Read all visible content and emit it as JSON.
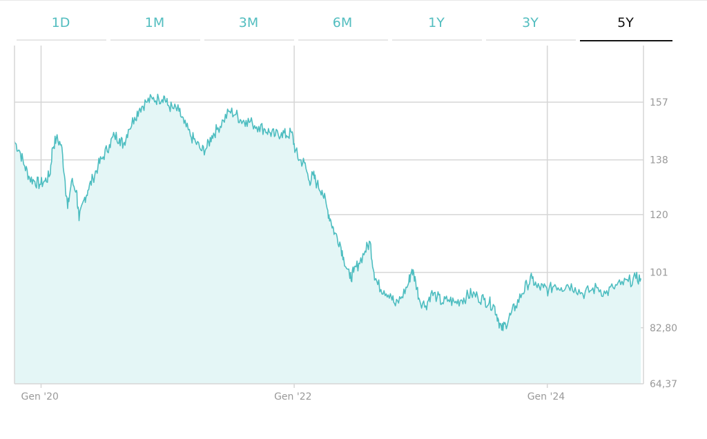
{
  "tabs": [
    {
      "label": "1D"
    },
    {
      "label": "1M"
    },
    {
      "label": "3M"
    },
    {
      "label": "6M"
    },
    {
      "label": "1Y"
    },
    {
      "label": "3Y"
    },
    {
      "label": "5Y",
      "active": true
    }
  ],
  "colors": {
    "accent": "#52bdbf",
    "line": "#4dbdc0",
    "fill": "#e4f6f6",
    "grid": "#d6d6d6",
    "axis_text": "#999999",
    "active_tab": "#111111"
  },
  "chart_data": {
    "type": "area",
    "title": "",
    "xlabel": "",
    "ylabel": "",
    "grid": true,
    "y_axis_position": "right",
    "x_ticks": [
      {
        "label": "Gen '20",
        "x": 2020.0
      },
      {
        "label": "Gen '22",
        "x": 2022.0
      },
      {
        "label": "Gen '24",
        "x": 2024.0
      }
    ],
    "y_ticks": [
      {
        "label": "157",
        "value": 157
      },
      {
        "label": "138",
        "value": 138
      },
      {
        "label": "120",
        "value": 120
      },
      {
        "label": "101",
        "value": 101
      },
      {
        "label": "82,80",
        "value": 82.8
      },
      {
        "label": "64,37",
        "value": 64.37
      }
    ],
    "xlim": [
      2019.79,
      2024.76
    ],
    "ylim": [
      64.37,
      175.6
    ],
    "series": [
      {
        "points": [
          [
            2019.79,
            144
          ],
          [
            2019.83,
            141
          ],
          [
            2019.87,
            136
          ],
          [
            2019.91,
            132
          ],
          [
            2019.95,
            131
          ],
          [
            2019.99,
            130
          ],
          [
            2020.03,
            131
          ],
          [
            2020.07,
            133
          ],
          [
            2020.09,
            142
          ],
          [
            2020.12,
            145
          ],
          [
            2020.16,
            143
          ],
          [
            2020.19,
            131
          ],
          [
            2020.21,
            122
          ],
          [
            2020.24,
            131
          ],
          [
            2020.28,
            128
          ],
          [
            2020.3,
            118
          ],
          [
            2020.34,
            125
          ],
          [
            2020.37,
            128
          ],
          [
            2020.41,
            132
          ],
          [
            2020.45,
            136
          ],
          [
            2020.49,
            139
          ],
          [
            2020.54,
            143
          ],
          [
            2020.58,
            146
          ],
          [
            2020.62,
            145
          ],
          [
            2020.65,
            143
          ],
          [
            2020.69,
            148
          ],
          [
            2020.74,
            152
          ],
          [
            2020.78,
            155
          ],
          [
            2020.83,
            157
          ],
          [
            2020.88,
            158
          ],
          [
            2020.93,
            158
          ],
          [
            2020.97,
            159
          ],
          [
            2021.0,
            156
          ],
          [
            2021.04,
            155
          ],
          [
            2021.09,
            154
          ],
          [
            2021.13,
            150
          ],
          [
            2021.18,
            146
          ],
          [
            2021.22,
            144
          ],
          [
            2021.27,
            141
          ],
          [
            2021.31,
            142
          ],
          [
            2021.35,
            146
          ],
          [
            2021.39,
            148
          ],
          [
            2021.44,
            151
          ],
          [
            2021.49,
            154
          ],
          [
            2021.54,
            153
          ],
          [
            2021.58,
            151
          ],
          [
            2021.62,
            151
          ],
          [
            2021.67,
            150
          ],
          [
            2021.72,
            149
          ],
          [
            2021.77,
            148
          ],
          [
            2021.81,
            147
          ],
          [
            2021.85,
            146
          ],
          [
            2021.9,
            147
          ],
          [
            2021.94,
            146
          ],
          [
            2021.98,
            147
          ],
          [
            2022.01,
            141
          ],
          [
            2022.04,
            138
          ],
          [
            2022.08,
            137
          ],
          [
            2022.12,
            131
          ],
          [
            2022.15,
            133
          ],
          [
            2022.18,
            130
          ],
          [
            2022.22,
            128
          ],
          [
            2022.26,
            122
          ],
          [
            2022.29,
            118
          ],
          [
            2022.32,
            114
          ],
          [
            2022.36,
            111
          ],
          [
            2022.39,
            106
          ],
          [
            2022.44,
            99
          ],
          [
            2022.47,
            101
          ],
          [
            2022.51,
            104
          ],
          [
            2022.56,
            108
          ],
          [
            2022.6,
            111
          ],
          [
            2022.63,
            101
          ],
          [
            2022.66,
            97
          ],
          [
            2022.71,
            95
          ],
          [
            2022.76,
            94
          ],
          [
            2022.8,
            90
          ],
          [
            2022.85,
            93
          ],
          [
            2022.9,
            97
          ],
          [
            2022.93,
            102
          ],
          [
            2022.96,
            98
          ],
          [
            2022.99,
            92
          ],
          [
            2023.04,
            90
          ],
          [
            2023.08,
            94
          ],
          [
            2023.13,
            93
          ],
          [
            2023.17,
            91
          ],
          [
            2023.22,
            92
          ],
          [
            2023.27,
            91
          ],
          [
            2023.32,
            92
          ],
          [
            2023.36,
            93
          ],
          [
            2023.4,
            94
          ],
          [
            2023.45,
            93
          ],
          [
            2023.5,
            92
          ],
          [
            2023.54,
            91
          ],
          [
            2023.58,
            90
          ],
          [
            2023.61,
            86
          ],
          [
            2023.64,
            82
          ],
          [
            2023.67,
            84
          ],
          [
            2023.71,
            87
          ],
          [
            2023.75,
            90
          ],
          [
            2023.8,
            94
          ],
          [
            2023.84,
            97
          ],
          [
            2023.88,
            99
          ],
          [
            2023.92,
            96
          ],
          [
            2023.97,
            96
          ],
          [
            2024.01,
            95
          ],
          [
            2024.06,
            97
          ],
          [
            2024.11,
            96
          ],
          [
            2024.16,
            97
          ],
          [
            2024.22,
            96
          ],
          [
            2024.28,
            94
          ],
          [
            2024.34,
            95
          ],
          [
            2024.4,
            96
          ],
          [
            2024.46,
            94
          ],
          [
            2024.52,
            96
          ],
          [
            2024.58,
            97
          ],
          [
            2024.64,
            98
          ],
          [
            2024.7,
            99
          ],
          [
            2024.74,
            99
          ]
        ]
      }
    ]
  }
}
